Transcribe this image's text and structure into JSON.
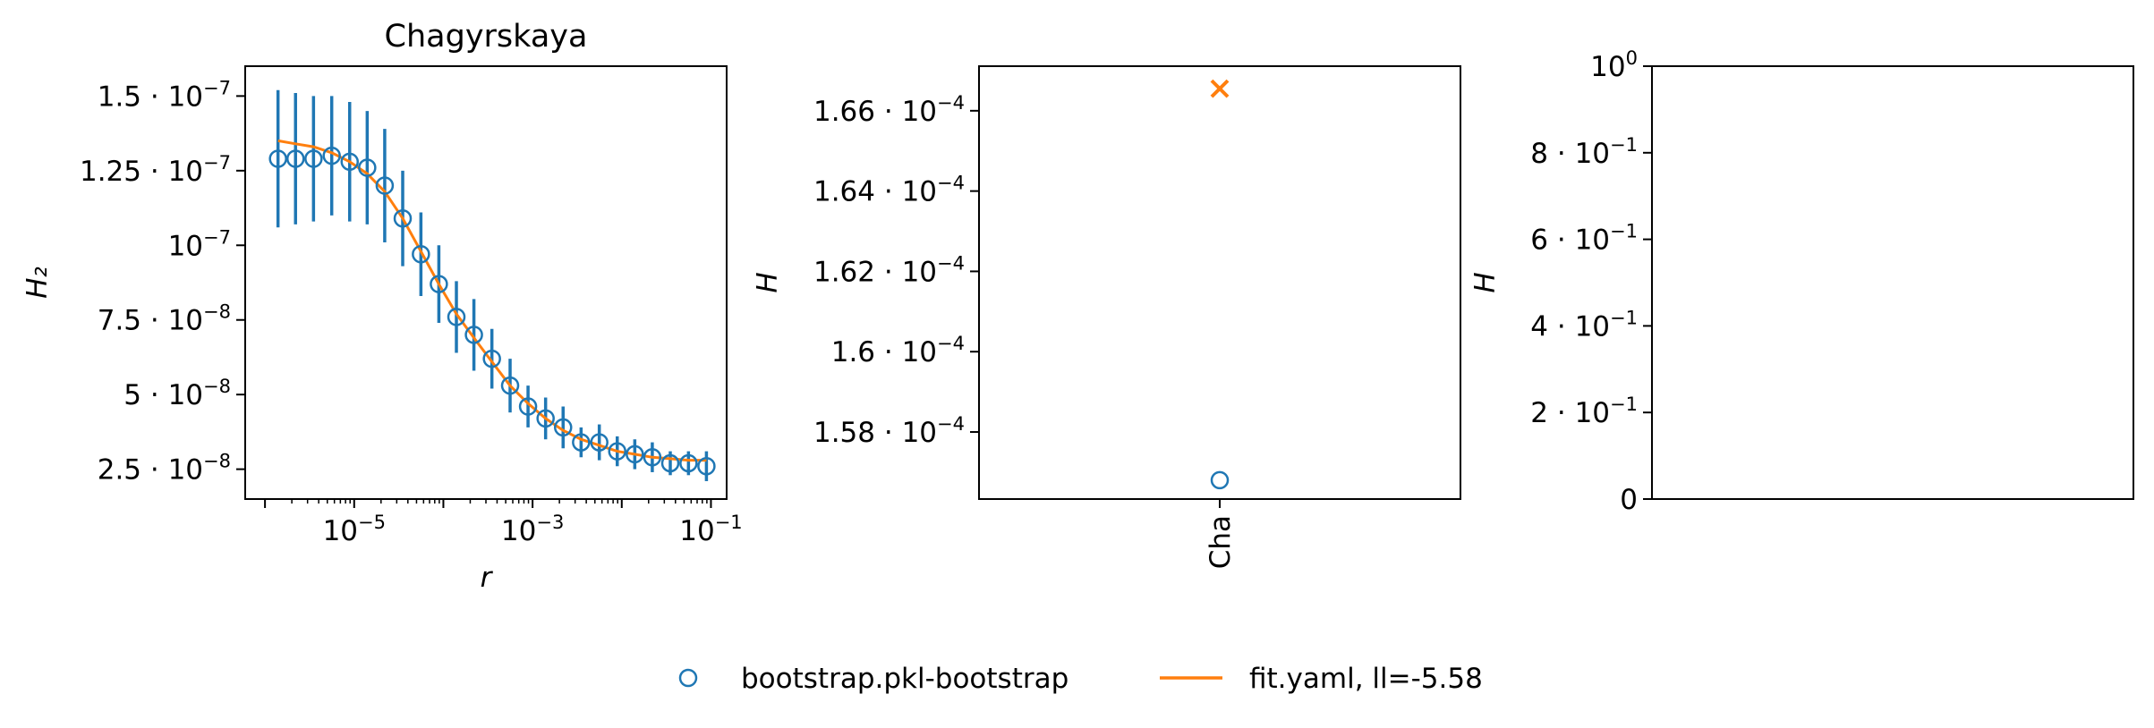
{
  "colors": {
    "data": "#1f77b4",
    "fit": "#ff7f0e",
    "axis": "#000000"
  },
  "legend": {
    "placement": "bottom-center",
    "entries": [
      {
        "label": "bootstrap.pkl-bootstrap",
        "marker": "open-circle",
        "color": "#1f77b4"
      },
      {
        "label": "fit.yaml, ll=-5.58",
        "marker": "line",
        "color": "#ff7f0e"
      }
    ]
  },
  "chart_data": [
    {
      "type": "scatter",
      "title": "Chagyrskaya",
      "xlabel": "r",
      "ylabel": "H₂",
      "xscale": "log",
      "xlim": [
        6e-07,
        0.15
      ],
      "ylim": [
        1.5e-08,
        1.6e-07
      ],
      "grid": false,
      "x_ticks": [
        {
          "value": 1e-05,
          "base": "10",
          "exp": "−5"
        },
        {
          "value": 0.001,
          "base": "10",
          "exp": "−3"
        },
        {
          "value": 0.1,
          "base": "10",
          "exp": "−1"
        }
      ],
      "y_ticks": [
        {
          "value": 2.5e-08,
          "mant": "2.5",
          "base": "10",
          "exp": "−8"
        },
        {
          "value": 5e-08,
          "mant": "5",
          "base": "10",
          "exp": "−8"
        },
        {
          "value": 7.5e-08,
          "mant": "7.5",
          "base": "10",
          "exp": "−8"
        },
        {
          "value": 1e-07,
          "mant": "",
          "base": "10",
          "exp": "−7"
        },
        {
          "value": 1.25e-07,
          "mant": "1.25",
          "base": "10",
          "exp": "−7"
        },
        {
          "value": 1.5e-07,
          "mant": "1.5",
          "base": "10",
          "exp": "−7"
        }
      ],
      "series": [
        {
          "name": "bootstrap.pkl-bootstrap",
          "kind": "errorbar-points",
          "points": [
            {
              "x": 1.4e-06,
              "y": 1.29e-07,
              "err": 2.3e-08
            },
            {
              "x": 2.2e-06,
              "y": 1.29e-07,
              "err": 2.2e-08
            },
            {
              "x": 3.5e-06,
              "y": 1.29e-07,
              "err": 2.1e-08
            },
            {
              "x": 5.6e-06,
              "y": 1.3e-07,
              "err": 2e-08
            },
            {
              "x": 8.9e-06,
              "y": 1.28e-07,
              "err": 2e-08
            },
            {
              "x": 1.4e-05,
              "y": 1.26e-07,
              "err": 1.9e-08
            },
            {
              "x": 2.2e-05,
              "y": 1.2e-07,
              "err": 1.9e-08
            },
            {
              "x": 3.5e-05,
              "y": 1.09e-07,
              "err": 1.6e-08
            },
            {
              "x": 5.6e-05,
              "y": 9.7e-08,
              "err": 1.4e-08
            },
            {
              "x": 8.9e-05,
              "y": 8.7e-08,
              "err": 1.3e-08
            },
            {
              "x": 0.00014,
              "y": 7.6e-08,
              "err": 1.2e-08
            },
            {
              "x": 0.00022,
              "y": 7e-08,
              "err": 1.2e-08
            },
            {
              "x": 0.00035,
              "y": 6.2e-08,
              "err": 1e-08
            },
            {
              "x": 0.00056,
              "y": 5.3e-08,
              "err": 9e-09
            },
            {
              "x": 0.00089,
              "y": 4.6e-08,
              "err": 7e-09
            },
            {
              "x": 0.0014,
              "y": 4.2e-08,
              "err": 7e-09
            },
            {
              "x": 0.0022,
              "y": 3.9e-08,
              "err": 7e-09
            },
            {
              "x": 0.0035,
              "y": 3.4e-08,
              "err": 5e-09
            },
            {
              "x": 0.0056,
              "y": 3.4e-08,
              "err": 6e-09
            },
            {
              "x": 0.0089,
              "y": 3.1e-08,
              "err": 5e-09
            },
            {
              "x": 0.014,
              "y": 3e-08,
              "err": 5e-09
            },
            {
              "x": 0.022,
              "y": 2.9e-08,
              "err": 5e-09
            },
            {
              "x": 0.035,
              "y": 2.7e-08,
              "err": 4e-09
            },
            {
              "x": 0.056,
              "y": 2.7e-08,
              "err": 4e-09
            },
            {
              "x": 0.089,
              "y": 2.6e-08,
              "err": 5e-09
            }
          ]
        },
        {
          "name": "fit.yaml, ll=-5.58",
          "kind": "line",
          "points": [
            {
              "x": 1.4e-06,
              "y": 1.35e-07
            },
            {
              "x": 2.2e-06,
              "y": 1.34e-07
            },
            {
              "x": 3.5e-06,
              "y": 1.33e-07
            },
            {
              "x": 5.6e-06,
              "y": 1.31e-07
            },
            {
              "x": 8.9e-06,
              "y": 1.28e-07
            },
            {
              "x": 1.4e-05,
              "y": 1.24e-07
            },
            {
              "x": 2.2e-05,
              "y": 1.18e-07
            },
            {
              "x": 3.5e-05,
              "y": 1.09e-07
            },
            {
              "x": 5.6e-05,
              "y": 9.8e-08
            },
            {
              "x": 8.9e-05,
              "y": 8.7e-08
            },
            {
              "x": 0.00014,
              "y": 7.7e-08
            },
            {
              "x": 0.00022,
              "y": 6.9e-08
            },
            {
              "x": 0.00035,
              "y": 6.1e-08
            },
            {
              "x": 0.00056,
              "y": 5.3e-08
            },
            {
              "x": 0.00089,
              "y": 4.7e-08
            },
            {
              "x": 0.0014,
              "y": 4.2e-08
            },
            {
              "x": 0.0022,
              "y": 3.8e-08
            },
            {
              "x": 0.0035,
              "y": 3.5e-08
            },
            {
              "x": 0.0056,
              "y": 3.3e-08
            },
            {
              "x": 0.0089,
              "y": 3.1e-08
            },
            {
              "x": 0.014,
              "y": 3e-08
            },
            {
              "x": 0.022,
              "y": 2.9e-08
            },
            {
              "x": 0.035,
              "y": 2.85e-08
            },
            {
              "x": 0.056,
              "y": 2.8e-08
            },
            {
              "x": 0.089,
              "y": 2.8e-08
            }
          ]
        }
      ]
    },
    {
      "type": "scatter",
      "title": "",
      "xlabel": "",
      "ylabel": "H",
      "ylim": [
        0.00015633,
        0.00016711
      ],
      "grid": false,
      "categories": [
        "Cha"
      ],
      "category_label_rotation": 90,
      "y_ticks": [
        {
          "value": 0.000158,
          "mant": "1.58",
          "base": "10",
          "exp": "−4"
        },
        {
          "value": 0.00016,
          "mant": "1.6",
          "base": "10",
          "exp": "−4"
        },
        {
          "value": 0.000162,
          "mant": "1.62",
          "base": "10",
          "exp": "−4"
        },
        {
          "value": 0.000164,
          "mant": "1.64",
          "base": "10",
          "exp": "−4"
        },
        {
          "value": 0.000166,
          "mant": "1.66",
          "base": "10",
          "exp": "−4"
        }
      ],
      "series": [
        {
          "name": "bootstrap.pkl-bootstrap",
          "marker": "open-circle",
          "category": "Cha",
          "value": 0.0001568
        },
        {
          "name": "fit.yaml, ll=-5.58",
          "marker": "x",
          "category": "Cha",
          "value": 0.00016655
        }
      ]
    },
    {
      "type": "scatter",
      "title": "",
      "xlabel": "",
      "ylabel": "H",
      "ylim": [
        0,
        1
      ],
      "grid": false,
      "y_ticks": [
        {
          "value": 0,
          "mant": "0",
          "base": "",
          "exp": ""
        },
        {
          "value": 0.2,
          "mant": "2",
          "base": "10",
          "exp": "−1"
        },
        {
          "value": 0.4,
          "mant": "4",
          "base": "10",
          "exp": "−1"
        },
        {
          "value": 0.6,
          "mant": "6",
          "base": "10",
          "exp": "−1"
        },
        {
          "value": 0.8,
          "mant": "8",
          "base": "10",
          "exp": "−1"
        },
        {
          "value": 1,
          "mant": "",
          "base": "10",
          "exp": "0"
        }
      ],
      "series": []
    }
  ]
}
